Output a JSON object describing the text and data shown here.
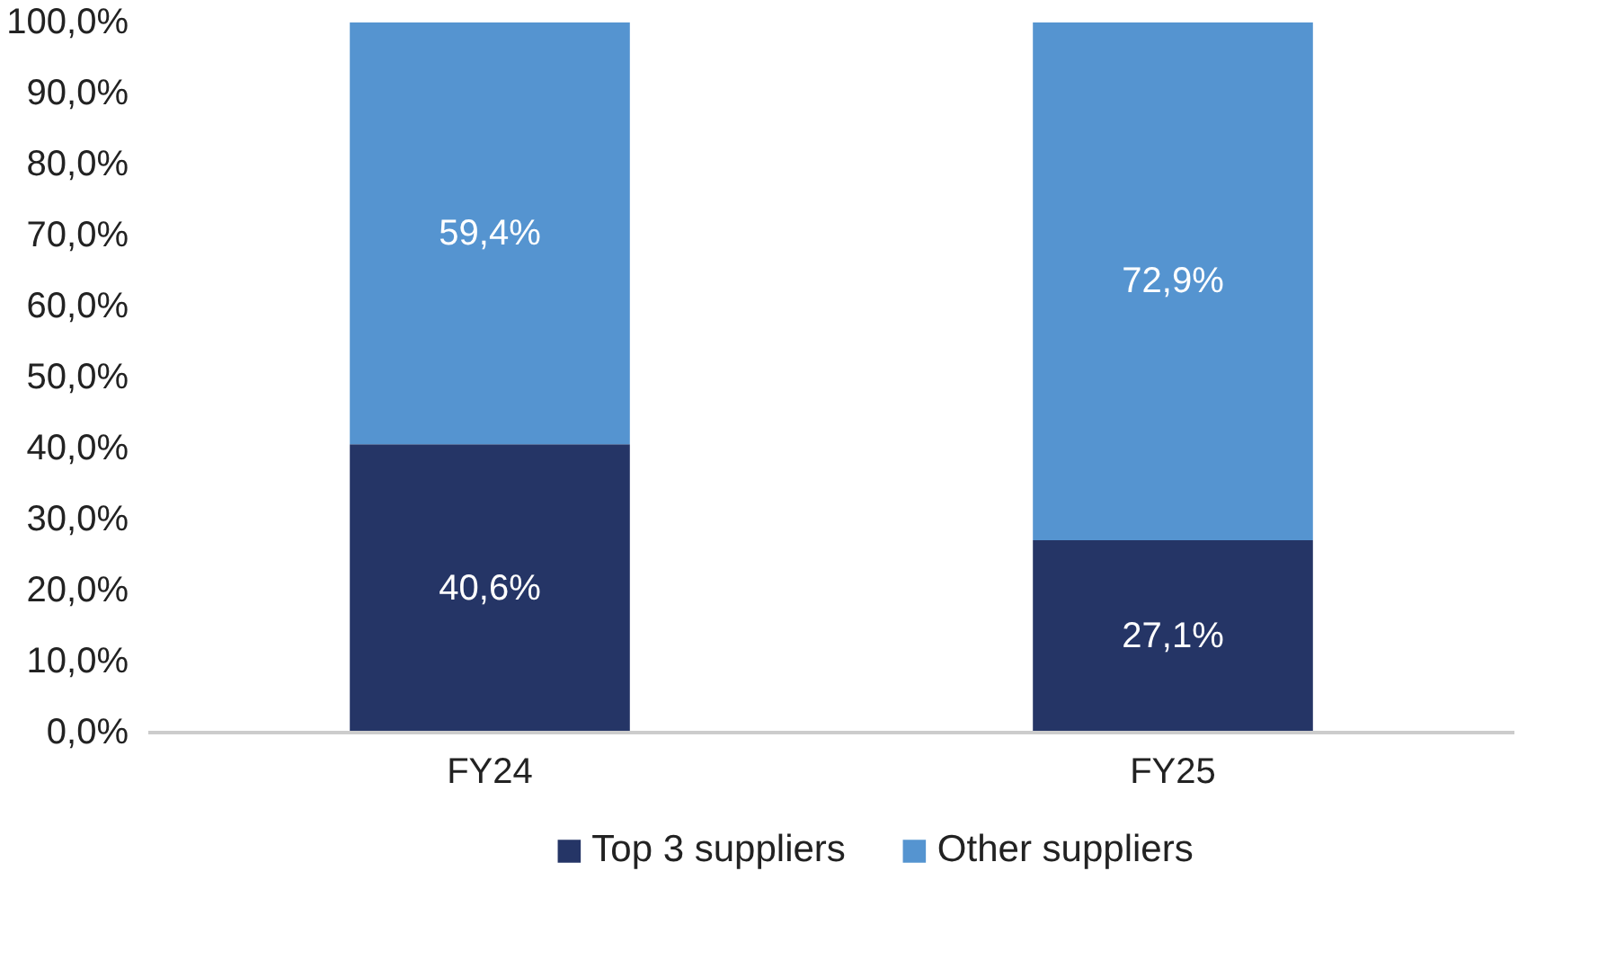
{
  "chart_data": {
    "type": "bar",
    "stacked": true,
    "categories": [
      "FY24",
      "FY25"
    ],
    "series": [
      {
        "name": "Top 3 suppliers",
        "color": "#253566",
        "values": [
          40.6,
          27.1
        ],
        "value_labels": [
          "40,6%",
          "27,1%"
        ]
      },
      {
        "name": "Other suppliers",
        "color": "#5594d0",
        "values": [
          59.4,
          72.9
        ],
        "value_labels": [
          "59,4%",
          "72,9%"
        ]
      }
    ],
    "ylim": [
      0,
      100
    ],
    "yticks": [
      {
        "value": 0,
        "label": "0,0%"
      },
      {
        "value": 10,
        "label": "10,0%"
      },
      {
        "value": 20,
        "label": "20,0%"
      },
      {
        "value": 30,
        "label": "30,0%"
      },
      {
        "value": 40,
        "label": "40,0%"
      },
      {
        "value": 50,
        "label": "50,0%"
      },
      {
        "value": 60,
        "label": "60,0%"
      },
      {
        "value": 70,
        "label": "70,0%"
      },
      {
        "value": 80,
        "label": "80,0%"
      },
      {
        "value": 90,
        "label": "90,0%"
      },
      {
        "value": 100,
        "label": "100,0%"
      }
    ],
    "grid": false,
    "legend": "bottom"
  }
}
